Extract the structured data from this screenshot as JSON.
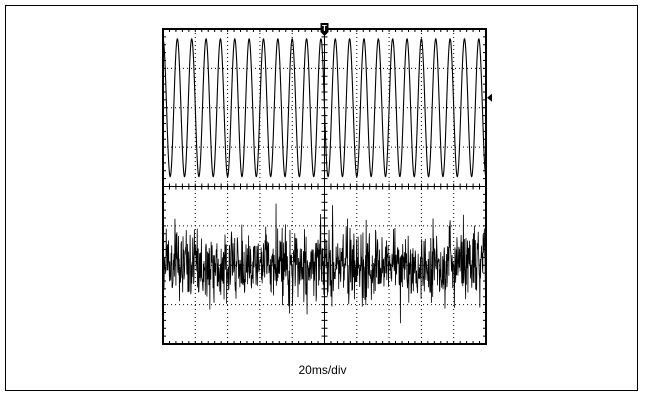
{
  "chart_data": {
    "type": "line",
    "title": "",
    "xlabel": "20ms/div",
    "ylabel": "",
    "x_divisions": 10,
    "y_divisions": 8,
    "grid": true,
    "trigger_marker": "T",
    "series": [
      {
        "id": "channel-1",
        "waveform": "sine",
        "cycles_on_screen": 22.5,
        "amplitude_divisions": 1.75,
        "center_division_from_top": 2.0
      },
      {
        "id": "channel-2",
        "waveform": "noise",
        "peak_amplitude_divisions": 1.7,
        "rms_divisions": 0.45,
        "center_division_from_top": 6.0
      }
    ]
  },
  "colors": {
    "trace": "#000000",
    "grid": "#000000",
    "background": "#ffffff"
  }
}
